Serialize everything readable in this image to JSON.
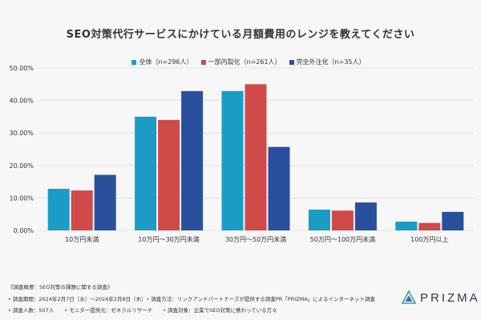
{
  "title": "SEO対策代行サービスにかけている月額費用のレンジを教えてください",
  "colors": {
    "series": [
      "#1a9cc4",
      "#d04a4a",
      "#2a4f9c"
    ],
    "grid": "#dcdcdc"
  },
  "chart_data": {
    "type": "bar",
    "categories": [
      "10万円未満",
      "10万円〜30万円未満",
      "30万円〜50万円未満",
      "50万円〜100万円未満",
      "100万円以上"
    ],
    "series": [
      {
        "name": "全体（n=296人）",
        "values": [
          12.8,
          35.0,
          42.9,
          6.4,
          2.7
        ]
      },
      {
        "name": "一部内製化（n=261人）",
        "values": [
          12.3,
          34.0,
          45.0,
          6.1,
          2.3
        ]
      },
      {
        "name": "完全外注化（n=35人）",
        "values": [
          17.1,
          42.9,
          25.7,
          8.6,
          5.7
        ]
      }
    ],
    "ylim": [
      0,
      50
    ],
    "yticks": [
      "0.00%",
      "10.00%",
      "20.00%",
      "30.00%",
      "40.00%",
      "50.00%"
    ],
    "grid": true,
    "legend": "top-center"
  },
  "footer": {
    "line1": "《調査概要：SEO対策の課題に関する調査》",
    "line2": "• 調査期間：2024年2月7日（水）〜2024年2月8日（木）• 調査方法：リンクアンドパートナーズが提供する調査PR「PRIZMA」によるインターネット調査",
    "line3": "• 調査人数：507人　　• モニター提供元：ゼネラルリサーチ　　• 調査対象：企業でSEO対策に携わっている方々"
  },
  "logo": "PRIZMA"
}
